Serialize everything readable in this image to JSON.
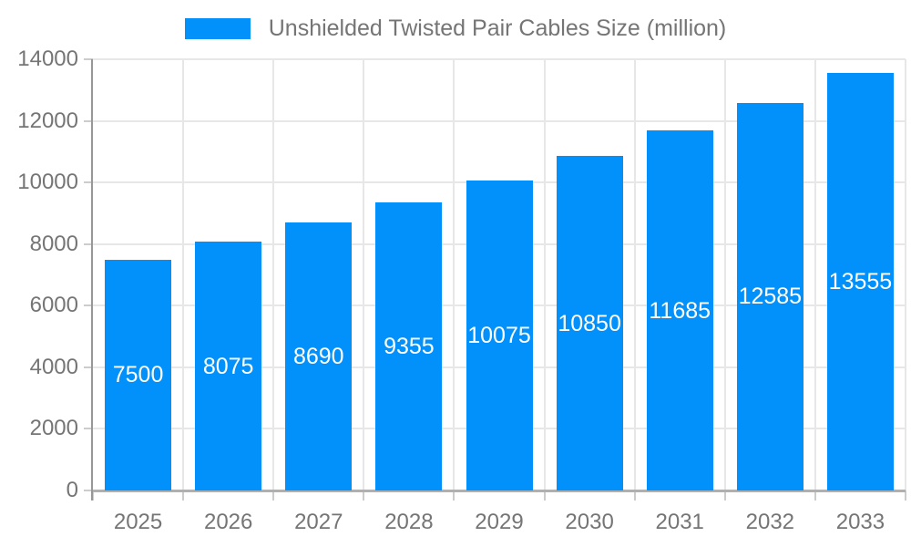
{
  "chart_data": {
    "type": "bar",
    "title": "Unshielded Twisted Pair Cables Size (million)",
    "series_name": "Unshielded Twisted Pair Cables Size (million)",
    "categories": [
      "2025",
      "2026",
      "2027",
      "2028",
      "2029",
      "2030",
      "2031",
      "2032",
      "2033"
    ],
    "values": [
      7500,
      8075,
      8690,
      9355,
      10075,
      10850,
      11685,
      12585,
      13555
    ],
    "xlabel": "",
    "ylabel": "",
    "ylim": [
      0,
      14000
    ],
    "yticks": [
      0,
      2000,
      4000,
      6000,
      8000,
      10000,
      12000,
      14000
    ],
    "grid": true,
    "legend_position": "top",
    "bar_labels_inside": true,
    "colors": {
      "bar": "#0291FB",
      "bar_label": "#ffffff",
      "axis_text": "#757575",
      "grid": "#e7e7e7",
      "axis_line_y": "#979797",
      "axis_line_x": "#b0b0b0",
      "tick": "#cccccc"
    }
  }
}
